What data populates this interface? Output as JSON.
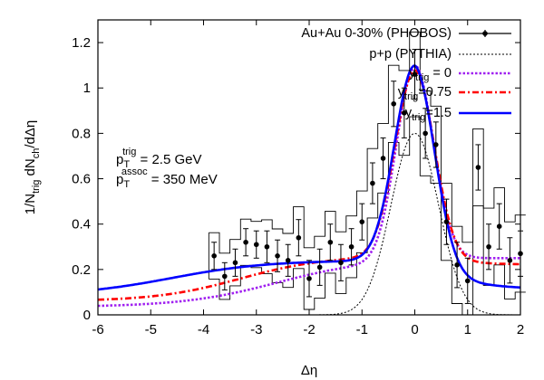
{
  "chart_data": {
    "type": "line",
    "title": "",
    "xlabel": "Δη",
    "ylabel": {
      "pre": "1/N",
      "sub1": "trig",
      "mid": " dN",
      "sub2": "ch",
      "post": "/dΔη"
    },
    "xlim": [
      -6,
      2
    ],
    "ylim": [
      0,
      1.3
    ],
    "x_ticks": [
      -6,
      -5,
      -4,
      -3,
      -2,
      -1,
      0,
      1,
      2
    ],
    "y_ticks": [
      0,
      0.2,
      0.4,
      0.6,
      0.8,
      1,
      1.2
    ],
    "x_tick_labels": [
      "-6",
      "-5",
      "-4",
      "-3",
      "-2",
      "-1",
      "0",
      "1",
      "2"
    ],
    "y_tick_labels": [
      "0",
      "0.2",
      "0.4",
      "0.6",
      "0.8",
      "1",
      "1.2"
    ],
    "legend_position": "top-right",
    "legend": [
      {
        "text": "Au+Au 0-30% (PHOBOS)",
        "style": "points"
      },
      {
        "text": "p+p (PYTHIA)",
        "style": "dotted"
      },
      {
        "pre": "y",
        "sub": "trig",
        "post": " = 0",
        "style": "purple-dotted"
      },
      {
        "pre": "y",
        "sub": "trig",
        "post": "=0.75",
        "style": "red-dashdot"
      },
      {
        "pre": "y",
        "sub": "trig",
        "post": "=1.5",
        "style": "blue-solid"
      }
    ],
    "annotations": [
      {
        "pre": "p",
        "sub": "T",
        "sup": "trig",
        "post": " = 2.5 GeV"
      },
      {
        "pre": "p",
        "sub": "T",
        "sup": "assoc",
        "post": " = 350 MeV"
      }
    ],
    "colors": {
      "data": "#000000",
      "pythia": "#000000",
      "ytrig0": "#a020f0",
      "ytrig075": "#ff0000",
      "ytrig15": "#0000ff",
      "dashdot_dark": "#a00000"
    },
    "series": [
      {
        "name": "Au+Au 0-30% (PHOBOS)",
        "kind": "points",
        "points": [
          {
            "x": -3.8,
            "y": 0.26,
            "err": 0.06
          },
          {
            "x": -3.6,
            "y": 0.17,
            "err": 0.06
          },
          {
            "x": -3.4,
            "y": 0.23,
            "err": 0.06
          },
          {
            "x": -3.2,
            "y": 0.32,
            "err": 0.06
          },
          {
            "x": -3.0,
            "y": 0.31,
            "err": 0.06
          },
          {
            "x": -2.8,
            "y": 0.3,
            "err": 0.07
          },
          {
            "x": -2.6,
            "y": 0.26,
            "err": 0.07
          },
          {
            "x": -2.4,
            "y": 0.24,
            "err": 0.07
          },
          {
            "x": -2.2,
            "y": 0.34,
            "err": 0.08
          },
          {
            "x": -2.0,
            "y": 0.16,
            "err": 0.08
          },
          {
            "x": -1.8,
            "y": 0.21,
            "err": 0.08
          },
          {
            "x": -1.6,
            "y": 0.32,
            "err": 0.08
          },
          {
            "x": -1.4,
            "y": 0.23,
            "err": 0.08
          },
          {
            "x": -1.2,
            "y": 0.3,
            "err": 0.08
          },
          {
            "x": -1.0,
            "y": 0.41,
            "err": 0.08
          },
          {
            "x": -0.8,
            "y": 0.58,
            "err": 0.09
          },
          {
            "x": -0.6,
            "y": 0.69,
            "err": 0.09
          },
          {
            "x": -0.4,
            "y": 0.93,
            "err": 0.1
          },
          {
            "x": -0.2,
            "y": 0.89,
            "err": 0.11
          },
          {
            "x": 0.0,
            "y": 1.06,
            "err": 0.11
          },
          {
            "x": 0.2,
            "y": 0.8,
            "err": 0.11
          },
          {
            "x": 0.4,
            "y": 0.75,
            "err": 0.1
          },
          {
            "x": 0.6,
            "y": 0.41,
            "err": 0.1
          },
          {
            "x": 0.8,
            "y": 0.22,
            "err": 0.1
          },
          {
            "x": 1.0,
            "y": 0.15,
            "err": 0.1
          },
          {
            "x": 1.2,
            "y": 0.65,
            "err": 0.1
          },
          {
            "x": 1.4,
            "y": 0.3,
            "err": 0.1
          },
          {
            "x": 1.6,
            "y": 0.39,
            "err": 0.1
          },
          {
            "x": 1.8,
            "y": 0.24,
            "err": 0.1
          },
          {
            "x": 2.0,
            "y": 0.27,
            "err": 0.1
          }
        ]
      },
      {
        "name": "p+p (PYTHIA)",
        "kind": "curve",
        "function": "gauss",
        "params": {
          "amp": 0.8,
          "sigma": 0.45,
          "base": 0
        }
      },
      {
        "name": "ytrig=0",
        "kind": "curve",
        "params": {
          "peak": 0.85,
          "sigma": 0.35,
          "base_start": 0.035,
          "base_plateau": 0.25,
          "ramp_center": -2.6,
          "ramp_width": 0.9,
          "right_base": 0.25
        }
      },
      {
        "name": "ytrig=0.75",
        "kind": "curve",
        "params": {
          "peak": 0.82,
          "sigma": 0.37,
          "base_start": 0.06,
          "base_plateau": 0.26,
          "ramp_center": -3.3,
          "ramp_width": 0.8,
          "right_base": 0.22
        }
      },
      {
        "name": "ytrig=1.5",
        "kind": "curve",
        "params": {
          "peak": 0.86,
          "sigma": 0.38,
          "base_start": 0.085,
          "base_plateau": 0.24,
          "ramp_center": -4.6,
          "ramp_width": 0.9,
          "right_base": 0.11
        }
      }
    ]
  }
}
